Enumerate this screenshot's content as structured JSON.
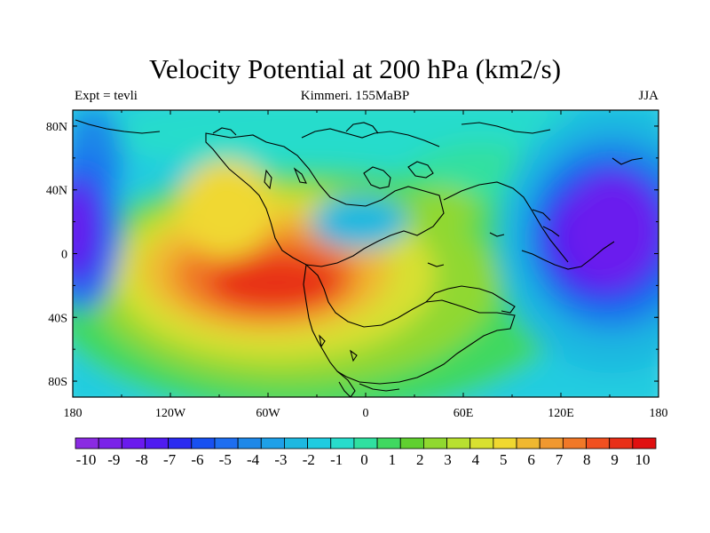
{
  "title": "Velocity Potential at 200 hPa (km2/s)",
  "subtitle_left": "Expt = tevli",
  "subtitle_center": "Kimmeri. 155MaBP",
  "subtitle_right": "JJA",
  "chart_data": {
    "type": "heatmap",
    "title": "Velocity Potential at 200 hPa (km2/s)",
    "x_ticks": [
      "180",
      "120W",
      "60W",
      "0",
      "60E",
      "120E",
      "180"
    ],
    "y_ticks": [
      "80N",
      "40N",
      "0",
      "40S",
      "80S"
    ],
    "xlim": [
      -180,
      180
    ],
    "ylim": [
      -90,
      90
    ],
    "colorbar": {
      "labels": [
        "-10",
        "-9",
        "-8",
        "-7",
        "-6",
        "-5",
        "-4",
        "-3",
        "-2",
        "-1",
        "0",
        "1",
        "2",
        "3",
        "4",
        "5",
        "6",
        "7",
        "8",
        "9",
        "10"
      ],
      "colors": [
        "#8a2be2",
        "#7a22e8",
        "#6a1aee",
        "#4f1bf0",
        "#2a2af0",
        "#1850f0",
        "#1e6ef0",
        "#1e88e8",
        "#1ea0e8",
        "#1eb8e0",
        "#20cce0",
        "#28dccc",
        "#30e0a0",
        "#40d860",
        "#60d030",
        "#90d830",
        "#b8e030",
        "#d8e030",
        "#f0d830",
        "#f0b830",
        "#f09830",
        "#f07828",
        "#f05020",
        "#e83018",
        "#e01010"
      ]
    },
    "field_centers": [
      {
        "name": "positive-maximum",
        "lon": -60,
        "lat": -18,
        "value": 10
      },
      {
        "name": "negative-minimum-east",
        "lon": 165,
        "lat": 5,
        "value": -8
      },
      {
        "name": "negative-minimum-west",
        "lon": -175,
        "lat": 20,
        "value": -7
      },
      {
        "name": "positive-secondary",
        "lon": 45,
        "lat": 28,
        "value": 3
      }
    ]
  }
}
